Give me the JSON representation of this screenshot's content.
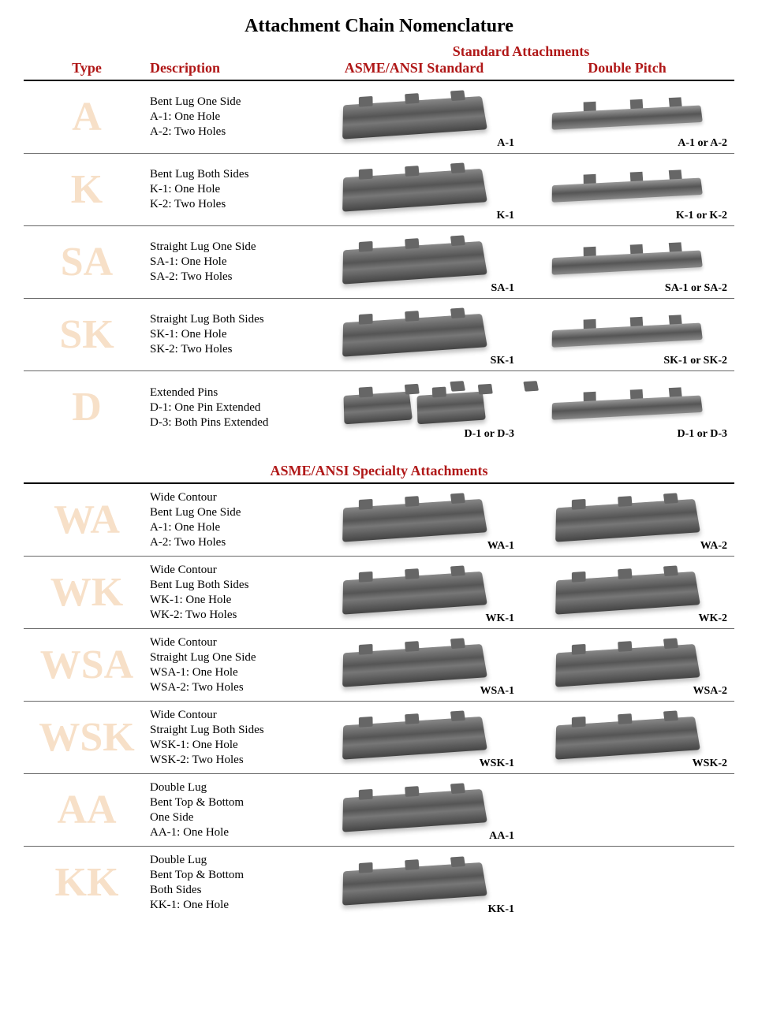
{
  "title": "Attachment Chain Nomenclature",
  "colors": {
    "header_red": "#b01818",
    "type_letter": "#f7e0c8",
    "text": "#000000",
    "rule": "#000000"
  },
  "headers": {
    "type": "Type",
    "description": "Description",
    "super": "Standard Attachments",
    "col1": "ASME/ANSI Standard",
    "col2": "Double Pitch"
  },
  "section1_rows": [
    {
      "type": "A",
      "desc": [
        "Bent Lug One Side",
        "A-1: One Hole",
        "A-2: Two Holes"
      ],
      "cap1": "A-1",
      "cap2": "A-1 or A-2"
    },
    {
      "type": "K",
      "desc": [
        "Bent Lug Both Sides",
        "K-1: One Hole",
        "K-2: Two Holes"
      ],
      "cap1": "K-1",
      "cap2": "K-1 or K-2"
    },
    {
      "type": "SA",
      "desc": [
        "Straight Lug One Side",
        "SA-1: One Hole",
        "SA-2: Two Holes"
      ],
      "cap1": "SA-1",
      "cap2": "SA-1 or SA-2"
    },
    {
      "type": "SK",
      "desc": [
        "Straight Lug Both Sides",
        "SK-1: One Hole",
        "SK-2: Two Holes"
      ],
      "cap1": "SK-1",
      "cap2": "SK-1 or SK-2"
    },
    {
      "type": "D",
      "desc": [
        "Extended Pins",
        "D-1: One Pin Extended",
        "D-3: Both Pins Extended"
      ],
      "cap1": "D-1 or D-3",
      "cap2": "D-1 or D-3",
      "pair1": true
    }
  ],
  "section2_title": "ASME/ANSI Specialty Attachments",
  "section2_rows": [
    {
      "type": "WA",
      "desc": [
        "Wide Contour",
        "Bent Lug One Side",
        "A-1: One Hole",
        "A-2: Two Holes"
      ],
      "cap1": "WA-1",
      "cap2": "WA-2"
    },
    {
      "type": "WK",
      "desc": [
        "Wide Contour",
        "Bent Lug Both Sides",
        "WK-1: One Hole",
        "WK-2: Two Holes"
      ],
      "cap1": "WK-1",
      "cap2": "WK-2"
    },
    {
      "type": "WSA",
      "desc": [
        "Wide Contour",
        "Straight Lug One Side",
        "WSA-1: One Hole",
        "WSA-2: Two Holes"
      ],
      "cap1": "WSA-1",
      "cap2": "WSA-2"
    },
    {
      "type": "WSK",
      "desc": [
        "Wide Contour",
        "Straight Lug Both Sides",
        "WSK-1: One Hole",
        "WSK-2: Two Holes"
      ],
      "cap1": "WSK-1",
      "cap2": "WSK-2"
    },
    {
      "type": "AA",
      "desc": [
        "Double Lug",
        "Bent Top & Bottom",
        "One Side",
        "AA-1: One Hole"
      ],
      "cap1": "AA-1",
      "cap2": ""
    },
    {
      "type": "KK",
      "desc": [
        "Double Lug",
        "Bent Top & Bottom",
        "Both Sides",
        "KK-1: One Hole"
      ],
      "cap1": "KK-1",
      "cap2": ""
    }
  ]
}
